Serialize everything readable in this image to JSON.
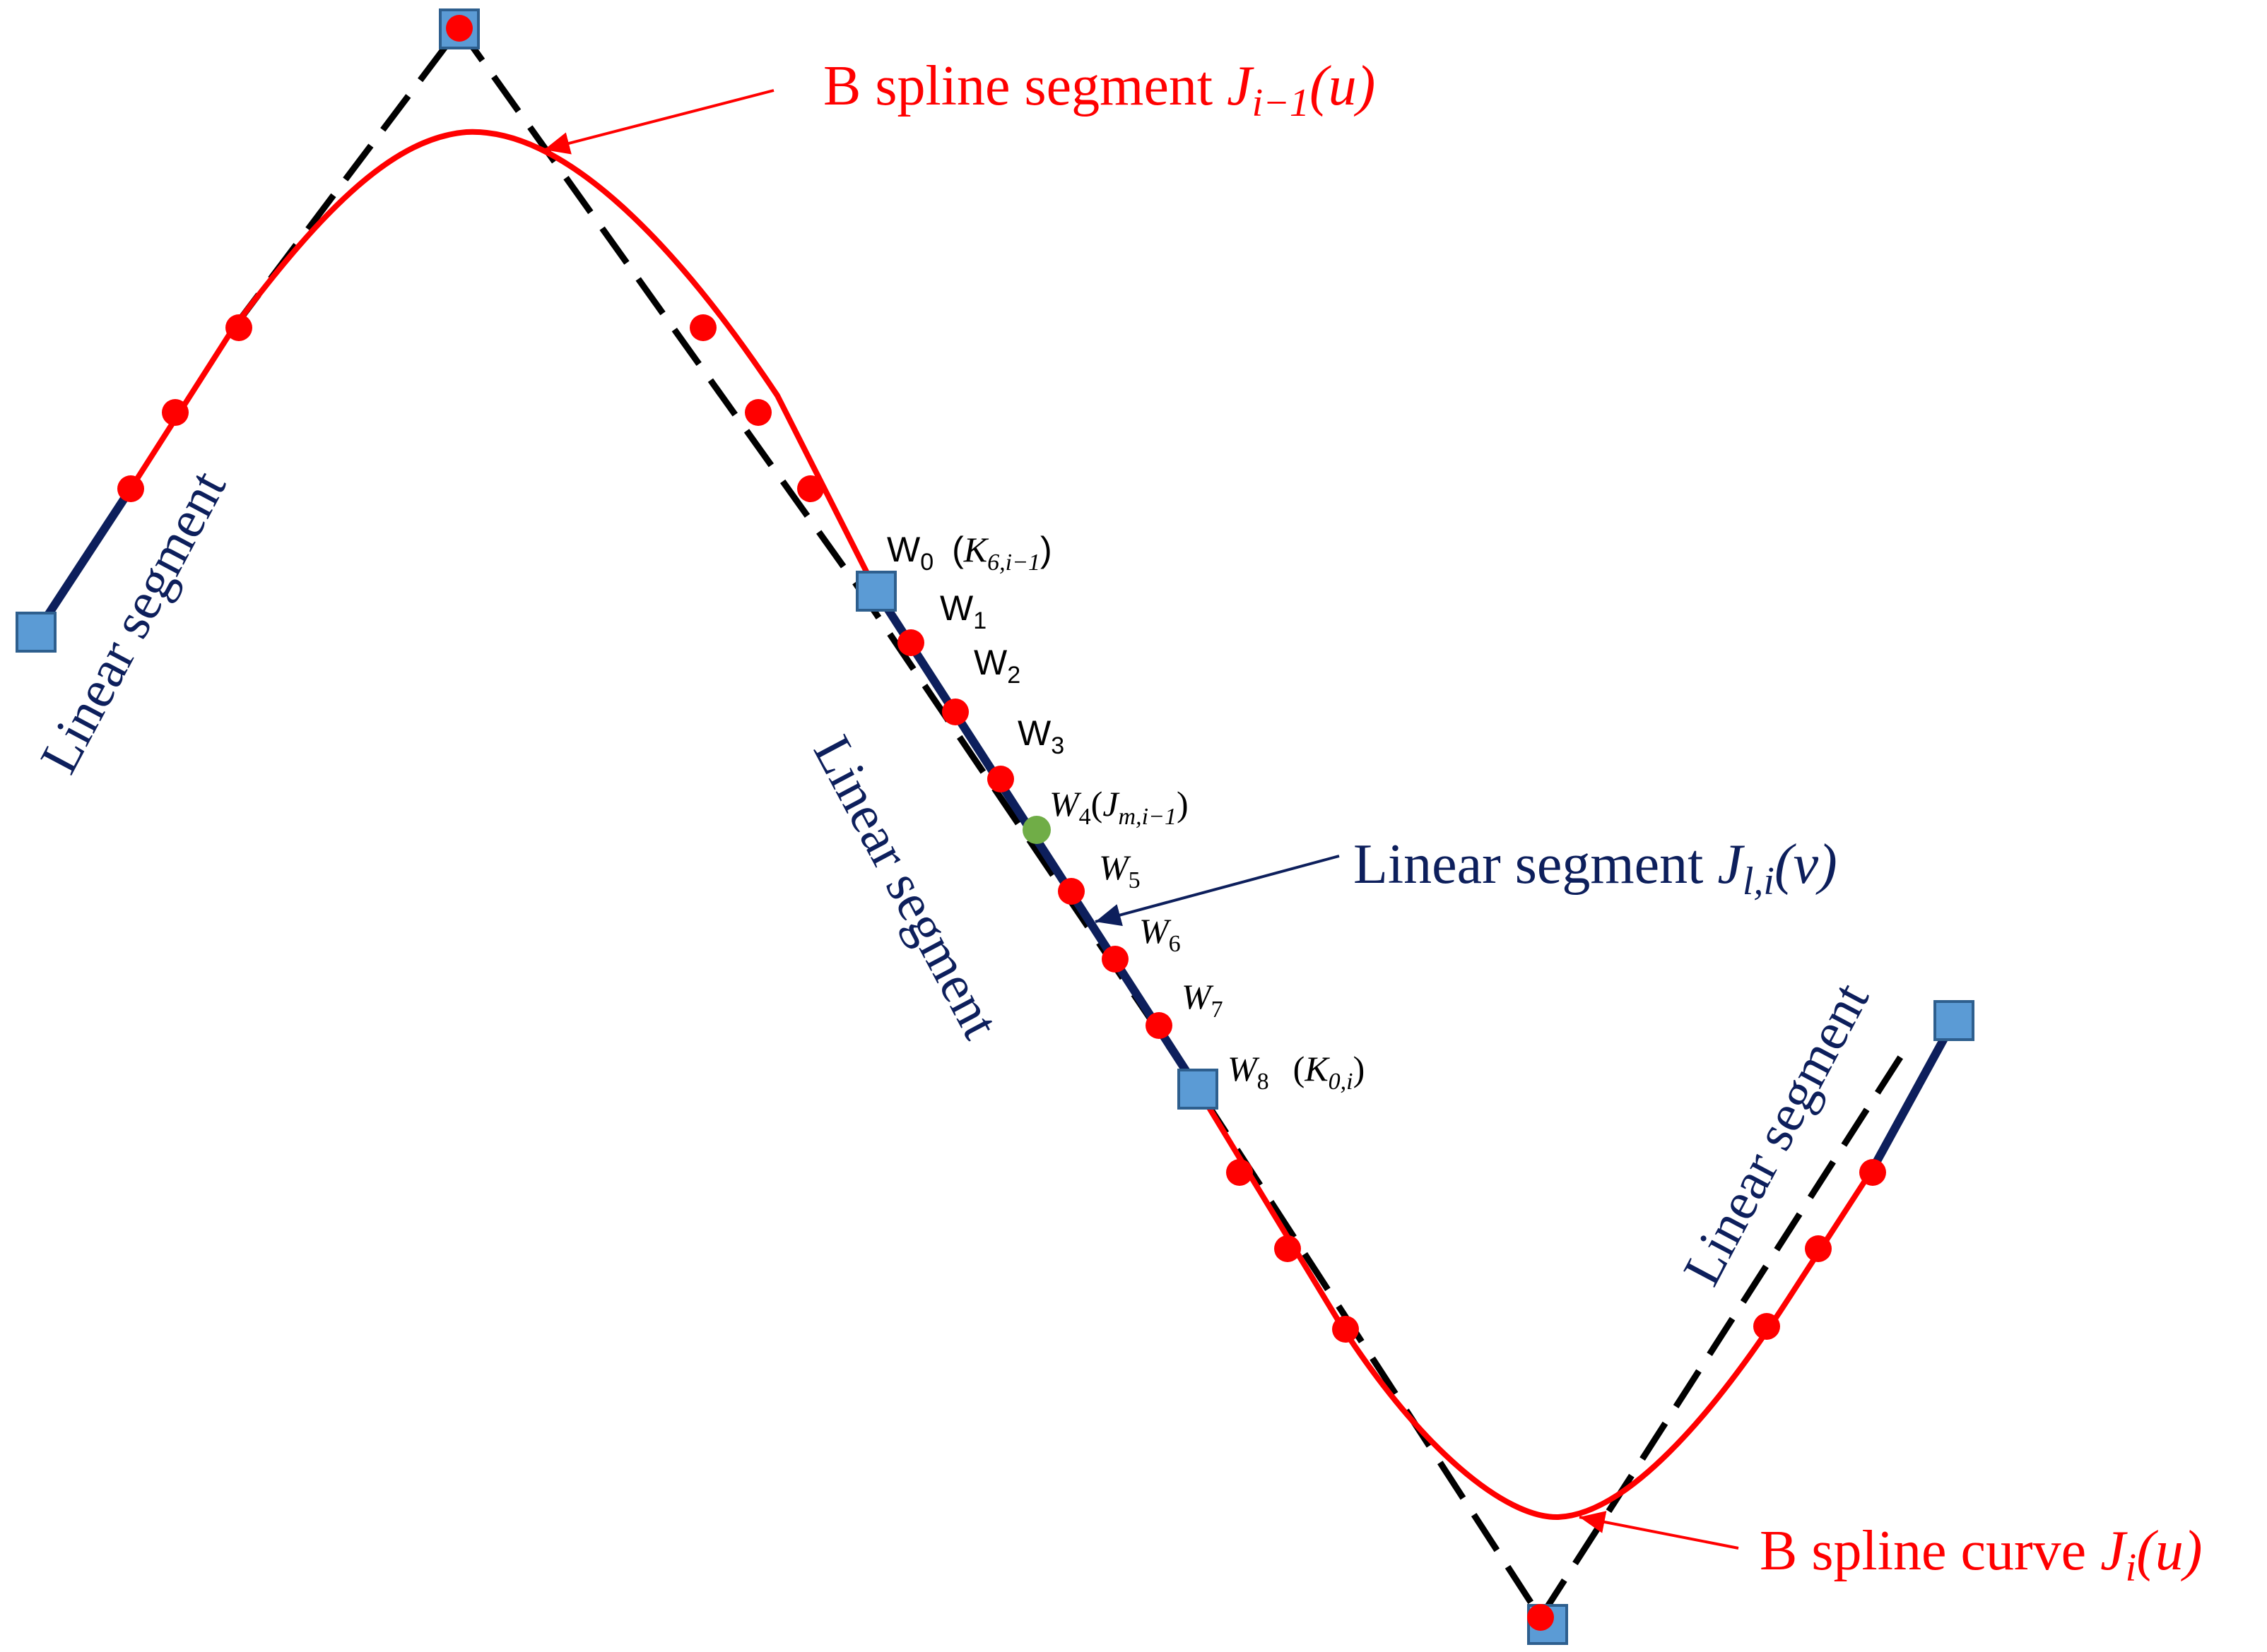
{
  "colors": {
    "bspline": "#ff0000",
    "linear": "#0d1f5c",
    "control_polygon": "#000000",
    "knot_marker": "#5b9bd5",
    "knot_marker_border": "#2e5f8e",
    "red_point": "#ff0000",
    "junction_point": "#70ad47"
  },
  "labels": {
    "bspline_segment": {
      "prefix": "B spline segment ",
      "symbol": "J",
      "subscript": "i−1",
      "suffix": "(u)"
    },
    "bspline_curve": {
      "prefix": "B spline curve ",
      "symbol": "J",
      "subscript": "i",
      "suffix": "(u)"
    },
    "linear_segment_main": {
      "prefix": "Linear segment ",
      "symbol": "J",
      "subscript": "l,i",
      "suffix": "(v)"
    },
    "linear_left": "Linear segment",
    "linear_middle": "Linear segment",
    "linear_right": "Linear segment"
  },
  "waypoints": [
    {
      "base": "W",
      "sub": "0",
      "extra_symbol": "K",
      "extra_sub": "6,i−1",
      "extra_open": "(",
      "extra_close": ")"
    },
    {
      "base": "W",
      "sub": "1"
    },
    {
      "base": "W",
      "sub": "2"
    },
    {
      "base": "W",
      "sub": "3"
    },
    {
      "base": "W",
      "sub": "4",
      "extra_symbol": "J",
      "extra_sub": "m,i−1",
      "extra_open": "(",
      "extra_close": ")"
    },
    {
      "base": "W",
      "sub": "5"
    },
    {
      "base": "W",
      "sub": "6"
    },
    {
      "base": "W",
      "sub": "7"
    },
    {
      "base": "W",
      "sub": "8",
      "extra_symbol": "K",
      "extra_sub": "0,i",
      "extra_open": "(",
      "extra_close": ")"
    }
  ]
}
